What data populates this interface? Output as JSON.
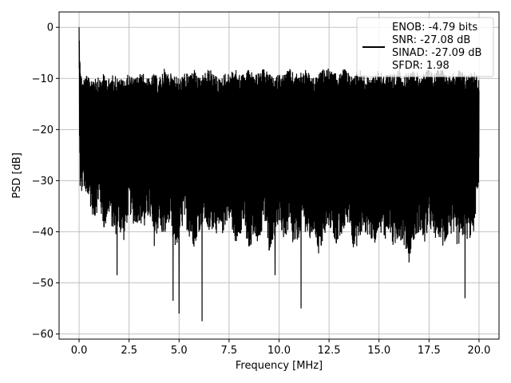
{
  "chart_data": {
    "type": "line",
    "title": "",
    "xlabel": "Frequency [MHz]",
    "ylabel": "PSD [dB]",
    "xlim": [
      -1.0,
      21.0
    ],
    "ylim": [
      -61,
      3
    ],
    "xticks": [
      0.0,
      2.5,
      5.0,
      7.5,
      10.0,
      12.5,
      15.0,
      17.5,
      20.0
    ],
    "xtick_labels": [
      "0.0",
      "2.5",
      "5.0",
      "7.5",
      "10.0",
      "12.5",
      "15.0",
      "17.5",
      "20.0"
    ],
    "yticks": [
      0,
      -10,
      -20,
      -30,
      -40,
      -50,
      -60
    ],
    "ytick_labels": [
      "0",
      "−10",
      "−20",
      "−30",
      "−40",
      "−50",
      "−60"
    ],
    "grid": true,
    "legend_placement": "top-right",
    "line_color": "#000000",
    "legend_lines": [
      "ENOB: -4.79 bits",
      "SNR: -27.08 dB",
      "SINAD: -27.09 dB",
      "SFDR: 1.98"
    ],
    "series": [
      {
        "x": [
          0.0,
          0.02,
          0.05,
          0.1,
          0.2,
          0.35,
          0.5,
          0.75,
          1.0,
          1.25,
          1.5,
          1.75,
          2.0,
          2.25,
          2.5,
          2.75,
          3.0,
          3.25,
          3.5,
          3.75,
          4.0,
          4.25,
          4.5,
          4.75,
          5.0,
          5.25,
          5.5,
          5.75,
          6.0,
          6.25,
          6.5,
          6.75,
          7.0,
          7.25,
          7.5,
          7.75,
          8.0,
          8.25,
          8.5,
          8.75,
          9.0,
          9.25,
          9.5,
          9.75,
          10.0,
          10.25,
          10.5,
          10.75,
          11.0,
          11.25,
          11.5,
          11.75,
          12.0,
          12.25,
          12.5,
          12.75,
          13.0,
          13.25,
          13.5,
          13.75,
          14.0,
          14.25,
          14.5,
          14.75,
          15.0,
          15.25,
          15.5,
          15.75,
          16.0,
          16.25,
          16.5,
          16.75,
          17.0,
          17.25,
          17.5,
          17.75,
          18.0,
          18.25,
          18.5,
          18.75,
          19.0,
          19.25,
          19.5,
          19.75,
          20.0
        ],
        "y_upper": [
          0,
          -2,
          -5,
          -9,
          -10,
          -9,
          -10,
          -9,
          -10,
          -9,
          -10,
          -9,
          -10,
          -10,
          -9,
          -10,
          -9,
          -9,
          -10,
          -9,
          -10,
          -8,
          -9,
          -9,
          -10,
          -9,
          -9,
          -8,
          -10,
          -9,
          -8,
          -9,
          -10,
          -9,
          -9,
          -8,
          -9,
          -9,
          -8,
          -9,
          -9,
          -8,
          -9,
          -10,
          -9,
          -9,
          -8,
          -9,
          -9,
          -8,
          -9,
          -10,
          -9,
          -8,
          -8,
          -9,
          -9,
          -8,
          -9,
          -9,
          -8,
          -9,
          -10,
          -9,
          -8,
          -9,
          -9,
          -9,
          -8,
          -9,
          -9,
          -8,
          -9,
          -9,
          -8,
          -9,
          -8,
          -8,
          -9,
          -9,
          -8,
          -9,
          -9,
          -8,
          -10
        ],
        "y_lower": [
          -5,
          -25,
          -32,
          -35,
          -30,
          -36,
          -34,
          -38,
          -35,
          -40,
          -37,
          -41,
          -40,
          -42,
          -36,
          -39,
          -38,
          -40,
          -37,
          -43,
          -39,
          -42,
          -38,
          -44,
          -42,
          -38,
          -41,
          -43,
          -40,
          -38,
          -41,
          -39,
          -42,
          -40,
          -37,
          -43,
          -41,
          -39,
          -46,
          -40,
          -43,
          -38,
          -44,
          -41,
          -39,
          -42,
          -40,
          -44,
          -41,
          -39,
          -43,
          -40,
          -45,
          -42,
          -39,
          -42,
          -43,
          -40,
          -38,
          -44,
          -42,
          -40,
          -41,
          -43,
          -39,
          -42,
          -40,
          -44,
          -41,
          -43,
          -45,
          -42,
          -40,
          -43,
          -39,
          -42,
          -41,
          -44,
          -40,
          -42,
          -43,
          -41,
          -42,
          -40,
          -30
        ],
        "deep_dips": [
          {
            "x": 1.9,
            "y": -48.5
          },
          {
            "x": 4.7,
            "y": -53.5
          },
          {
            "x": 5.0,
            "y": -56.0
          },
          {
            "x": 6.15,
            "y": -57.5
          },
          {
            "x": 9.8,
            "y": -48.5
          },
          {
            "x": 11.1,
            "y": -55.0
          },
          {
            "x": 16.5,
            "y": -46.0
          },
          {
            "x": 19.3,
            "y": -53.0
          }
        ]
      }
    ]
  }
}
